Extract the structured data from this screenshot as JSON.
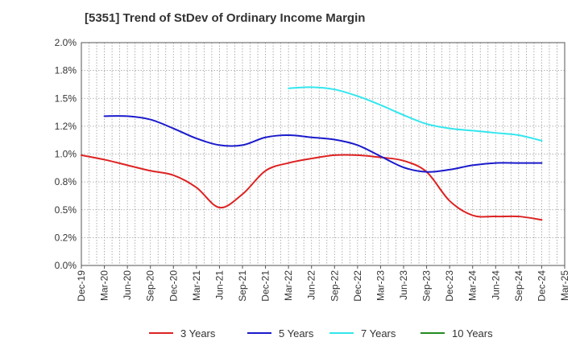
{
  "chart_data": {
    "type": "line",
    "title": "[5351]  Trend of StDev of Ordinary Income Margin",
    "xlabel": "",
    "ylabel": "",
    "x_tick_labels": [
      "Dec-19",
      "Mar-20",
      "Jun-20",
      "Sep-20",
      "Dec-20",
      "Mar-21",
      "Jun-21",
      "Sep-21",
      "Dec-21",
      "Mar-22",
      "Jun-22",
      "Sep-22",
      "Dec-22",
      "Mar-23",
      "Jun-23",
      "Sep-23",
      "Dec-23",
      "Mar-24",
      "Jun-24",
      "Sep-24",
      "Dec-24",
      "Mar-25"
    ],
    "y_ticks": [
      0.0,
      0.25,
      0.5,
      0.75,
      1.0,
      1.25,
      1.5,
      1.75,
      2.0
    ],
    "y_tick_labels": [
      "0.0%",
      "0.2%",
      "0.5%",
      "0.8%",
      "1.0%",
      "1.2%",
      "1.5%",
      "1.8%",
      "2.0%"
    ],
    "ylim": [
      0,
      2.0
    ],
    "grid": true,
    "legend_position": "bottom",
    "series": [
      {
        "name": "3 Years",
        "color": "#dd2222",
        "points": [
          [
            "Dec-19",
            0.99
          ],
          [
            "Mar-20",
            0.95
          ],
          [
            "Jun-20",
            0.9
          ],
          [
            "Sep-20",
            0.85
          ],
          [
            "Dec-20",
            0.81
          ],
          [
            "Mar-21",
            0.7
          ],
          [
            "Jun-21",
            0.52
          ],
          [
            "Sep-21",
            0.64
          ],
          [
            "Dec-21",
            0.85
          ],
          [
            "Mar-22",
            0.92
          ],
          [
            "Jun-22",
            0.96
          ],
          [
            "Sep-22",
            0.99
          ],
          [
            "Dec-22",
            0.99
          ],
          [
            "Mar-23",
            0.97
          ],
          [
            "Jun-23",
            0.94
          ],
          [
            "Sep-23",
            0.84
          ],
          [
            "Dec-23",
            0.58
          ],
          [
            "Mar-24",
            0.45
          ],
          [
            "Jun-24",
            0.44
          ],
          [
            "Sep-24",
            0.44
          ],
          [
            "Dec-24",
            0.41
          ]
        ]
      },
      {
        "name": "5 Years",
        "color": "#1a1acc",
        "points": [
          [
            "Mar-20",
            1.34
          ],
          [
            "Jun-20",
            1.34
          ],
          [
            "Sep-20",
            1.31
          ],
          [
            "Dec-20",
            1.23
          ],
          [
            "Mar-21",
            1.14
          ],
          [
            "Jun-21",
            1.08
          ],
          [
            "Sep-21",
            1.08
          ],
          [
            "Dec-21",
            1.15
          ],
          [
            "Mar-22",
            1.17
          ],
          [
            "Jun-22",
            1.15
          ],
          [
            "Sep-22",
            1.13
          ],
          [
            "Dec-22",
            1.08
          ],
          [
            "Mar-23",
            0.98
          ],
          [
            "Jun-23",
            0.88
          ],
          [
            "Sep-23",
            0.84
          ],
          [
            "Dec-23",
            0.86
          ],
          [
            "Mar-24",
            0.9
          ],
          [
            "Jun-24",
            0.92
          ],
          [
            "Sep-24",
            0.92
          ],
          [
            "Dec-24",
            0.92
          ]
        ]
      },
      {
        "name": "7 Years",
        "color": "#33e6ee",
        "points": [
          [
            "Mar-22",
            1.59
          ],
          [
            "Jun-22",
            1.6
          ],
          [
            "Sep-22",
            1.58
          ],
          [
            "Dec-22",
            1.52
          ],
          [
            "Mar-23",
            1.44
          ],
          [
            "Jun-23",
            1.35
          ],
          [
            "Sep-23",
            1.27
          ],
          [
            "Dec-23",
            1.23
          ],
          [
            "Mar-24",
            1.21
          ],
          [
            "Jun-24",
            1.19
          ],
          [
            "Sep-24",
            1.17
          ],
          [
            "Dec-24",
            1.12
          ]
        ]
      },
      {
        "name": "10 Years",
        "color": "#228b22",
        "points": []
      }
    ]
  }
}
